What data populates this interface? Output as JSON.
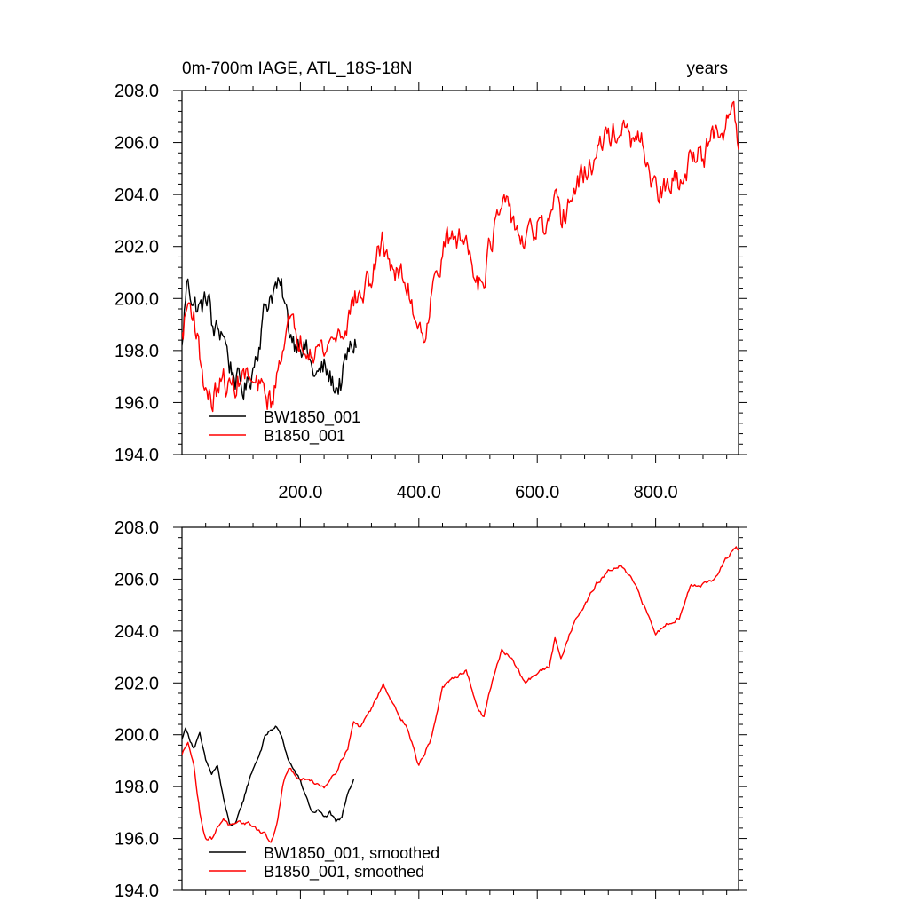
{
  "chart_data": [
    {
      "type": "line",
      "title": "0m-700m IAGE, ATL_18S-18N",
      "units": "years",
      "xlim": [
        0,
        940
      ],
      "ylim": [
        194,
        208
      ],
      "xticks": [
        200,
        400,
        600,
        800
      ],
      "xtick_labels": [
        "200.0",
        "400.0",
        "600.0",
        "800.0"
      ],
      "yticks": [
        194,
        196,
        198,
        200,
        202,
        204,
        206,
        208
      ],
      "ytick_labels": [
        "194.0",
        "196.0",
        "198.0",
        "200.0",
        "202.0",
        "204.0",
        "206.0",
        "208.0"
      ],
      "legend_position": "bottom-left",
      "series": [
        {
          "name": "BW1850_001",
          "color": "#000000",
          "noise": 0.45,
          "x": [
            0,
            5,
            10,
            20,
            30,
            40,
            45,
            50,
            60,
            70,
            80,
            90,
            100,
            110,
            120,
            130,
            140,
            150,
            160,
            170,
            180,
            190,
            200,
            210,
            220,
            230,
            240,
            250,
            260,
            270,
            280,
            290,
            295
          ],
          "values": [
            198.0,
            199.8,
            200.8,
            199.8,
            199.6,
            199.8,
            200.4,
            198.8,
            198.7,
            198.8,
            197.5,
            197.0,
            196.5,
            196.6,
            197.4,
            198.4,
            199.6,
            200.2,
            200.5,
            200.1,
            198.9,
            198.4,
            198.5,
            198.0,
            197.2,
            197.0,
            197.3,
            196.9,
            196.6,
            196.8,
            197.8,
            198.2,
            198.4
          ]
        },
        {
          "name": "B1850_001",
          "color": "#ff0000",
          "noise": 0.45,
          "x": [
            0,
            10,
            20,
            30,
            40,
            50,
            60,
            70,
            80,
            90,
            100,
            110,
            120,
            130,
            140,
            150,
            160,
            170,
            180,
            190,
            200,
            220,
            240,
            260,
            270,
            280,
            290,
            300,
            320,
            340,
            360,
            380,
            400,
            410,
            420,
            440,
            460,
            480,
            500,
            510,
            520,
            540,
            560,
            570,
            580,
            600,
            620,
            630,
            640,
            660,
            680,
            700,
            720,
            740,
            760,
            780,
            800,
            820,
            840,
            850,
            860,
            880,
            900,
            910,
            920,
            930,
            935,
            940
          ],
          "values": [
            198.5,
            199.8,
            199.5,
            197.8,
            196.5,
            196.0,
            196.5,
            196.8,
            196.5,
            196.7,
            197.0,
            197.0,
            196.6,
            196.5,
            196.3,
            196.0,
            196.8,
            198.5,
            199.0,
            198.6,
            198.5,
            198.3,
            198.0,
            198.6,
            198.7,
            199.2,
            200.0,
            200.0,
            200.8,
            202.2,
            201.0,
            200.5,
            199.0,
            198.8,
            199.8,
            202.0,
            202.3,
            202.2,
            200.8,
            201.0,
            202.0,
            203.5,
            203.0,
            202.5,
            202.0,
            202.8,
            202.5,
            203.5,
            203.0,
            204.0,
            204.8,
            205.5,
            206.3,
            206.5,
            206.0,
            205.8,
            204.0,
            204.3,
            204.5,
            204.3,
            205.8,
            205.5,
            206.2,
            205.8,
            206.8,
            207.5,
            207.0,
            206.0
          ]
        }
      ]
    },
    {
      "type": "line",
      "title": "",
      "units": "",
      "xlim": [
        0,
        940
      ],
      "ylim": [
        194,
        208
      ],
      "xticks": [
        200,
        400,
        600,
        800
      ],
      "xtick_labels": [],
      "yticks": [
        194,
        196,
        198,
        200,
        202,
        204,
        206,
        208
      ],
      "ytick_labels": [
        "194.0",
        "196.0",
        "198.0",
        "200.0",
        "202.0",
        "204.0",
        "206.0",
        "208.0"
      ],
      "legend_position": "bottom-left",
      "series": [
        {
          "name": "BW1850_001, smoothed",
          "color": "#000000",
          "noise": 0.06,
          "x": [
            0,
            5,
            10,
            20,
            30,
            40,
            50,
            60,
            70,
            80,
            90,
            100,
            110,
            120,
            130,
            140,
            150,
            160,
            170,
            180,
            190,
            200,
            210,
            220,
            230,
            240,
            250,
            260,
            270,
            280,
            290
          ],
          "values": [
            199.8,
            200.3,
            200.0,
            199.5,
            200.0,
            199.0,
            198.5,
            198.8,
            197.5,
            196.6,
            196.5,
            197.2,
            198.0,
            198.7,
            199.2,
            199.9,
            200.2,
            200.3,
            199.8,
            199.0,
            198.6,
            198.2,
            197.6,
            197.0,
            197.1,
            196.8,
            197.0,
            196.6,
            196.8,
            197.8,
            198.3
          ]
        },
        {
          "name": "B1850_001, smoothed",
          "color": "#ff0000",
          "noise": 0.06,
          "x": [
            0,
            10,
            20,
            30,
            40,
            50,
            60,
            70,
            80,
            90,
            100,
            110,
            120,
            130,
            140,
            150,
            160,
            170,
            180,
            190,
            200,
            220,
            240,
            260,
            280,
            290,
            300,
            320,
            340,
            360,
            380,
            400,
            420,
            440,
            460,
            480,
            500,
            510,
            520,
            540,
            560,
            580,
            600,
            620,
            630,
            640,
            660,
            680,
            700,
            720,
            740,
            760,
            780,
            800,
            820,
            840,
            860,
            880,
            900,
            920,
            935,
            940
          ],
          "values": [
            199.2,
            199.8,
            198.8,
            197.0,
            196.0,
            196.0,
            196.4,
            196.8,
            196.5,
            196.5,
            196.6,
            196.6,
            196.5,
            196.3,
            196.2,
            195.8,
            196.5,
            198.0,
            198.7,
            198.5,
            198.3,
            198.2,
            198.0,
            198.6,
            199.5,
            200.5,
            200.3,
            201.0,
            202.0,
            201.0,
            200.3,
            198.8,
            199.8,
            201.8,
            202.2,
            202.5,
            201.0,
            200.7,
            201.7,
            203.3,
            202.8,
            202.0,
            202.4,
            202.6,
            203.7,
            203.0,
            204.2,
            205.0,
            205.8,
            206.3,
            206.5,
            206.0,
            205.0,
            203.9,
            204.3,
            204.5,
            205.8,
            205.8,
            206.0,
            206.8,
            207.2,
            207.1
          ]
        }
      ]
    }
  ]
}
